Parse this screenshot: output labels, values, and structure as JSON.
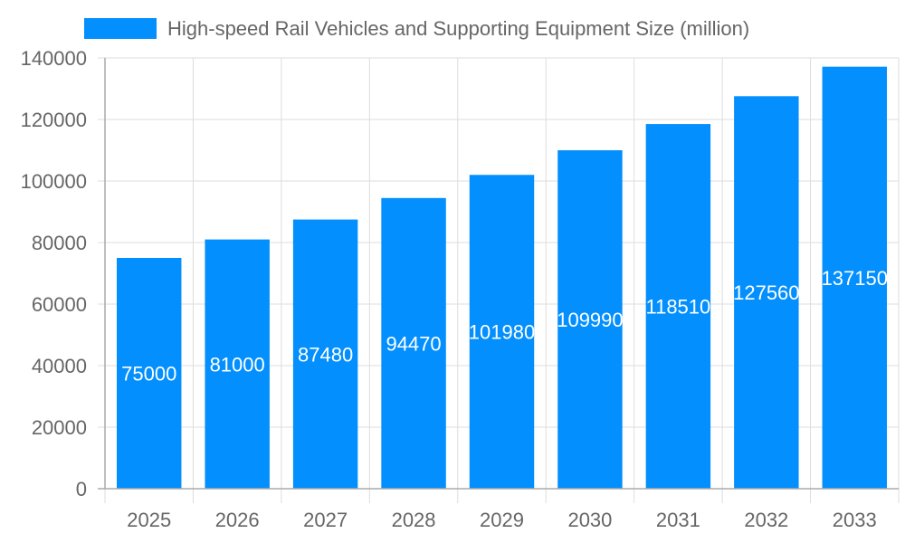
{
  "chart_data": {
    "type": "bar",
    "categories": [
      "2025",
      "2026",
      "2027",
      "2028",
      "2029",
      "2030",
      "2031",
      "2032",
      "2033"
    ],
    "series": [
      {
        "name": "High-speed Rail Vehicles and Supporting Equipment Size (million)",
        "values": [
          75000,
          81000,
          87480,
          94470,
          101980,
          109990,
          118510,
          127560,
          137150
        ]
      }
    ],
    "ylim": [
      0,
      140000
    ],
    "yticks": [
      0,
      20000,
      40000,
      60000,
      80000,
      100000,
      120000,
      140000
    ],
    "grid": true,
    "legend": "top",
    "data_labels": true,
    "colors": {
      "bar": "#038ffd",
      "label": "#ffffff",
      "text": "#666666",
      "grid": "#dddddd"
    }
  }
}
